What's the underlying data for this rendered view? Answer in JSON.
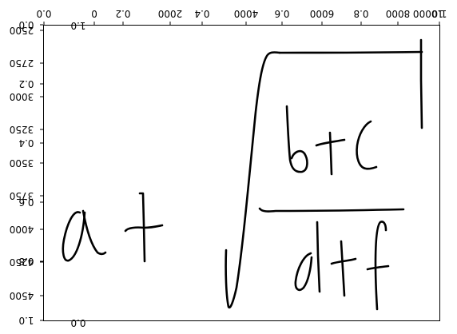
{
  "axes_flipped": true,
  "axes": {
    "x_fraction_ticks": [
      "0.0",
      "0.2",
      "0.4",
      "0.6",
      "0.8",
      "1.0"
    ],
    "y_fraction_ticks": [
      "0.0",
      "0.2",
      "0.4",
      "0.6",
      "0.8",
      "1.0"
    ],
    "x_pixel_ticks": [
      "0",
      "2000",
      "4000",
      "6000",
      "8000",
      "10000"
    ],
    "y_pixel_ticks": [
      "2500",
      "2750",
      "3000",
      "3250",
      "3500",
      "3750",
      "4000",
      "4250",
      "4500"
    ],
    "stray_labels": [
      "1.0",
      "0.0"
    ]
  },
  "handwriting": {
    "description_colors": {
      "ink": "#000000",
      "frame": "#000000",
      "background": "#ffffff"
    },
    "strokes": [
      {
        "name": "letter-a-loop"
      },
      {
        "name": "letter-a-tail"
      },
      {
        "name": "plus-vertical-left"
      },
      {
        "name": "plus-horizontal-left"
      },
      {
        "name": "sqrt-sign"
      },
      {
        "name": "sqrt-bar"
      },
      {
        "name": "sqrt-right-tick"
      },
      {
        "name": "letter-b"
      },
      {
        "name": "plus-vertical-num"
      },
      {
        "name": "plus-horizontal-num"
      },
      {
        "name": "letter-c"
      },
      {
        "name": "fraction-bar"
      },
      {
        "name": "letter-d-bowl"
      },
      {
        "name": "letter-d-stem"
      },
      {
        "name": "plus-vertical-den"
      },
      {
        "name": "plus-horizontal-den"
      },
      {
        "name": "letter-f-stem"
      },
      {
        "name": "letter-f-cross"
      }
    ]
  }
}
